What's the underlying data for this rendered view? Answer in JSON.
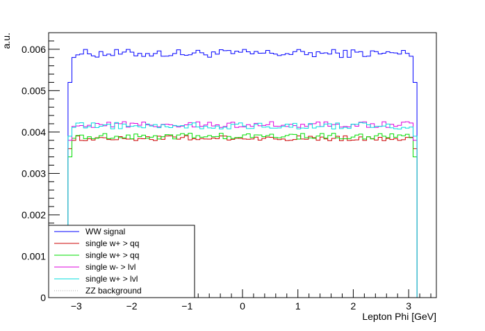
{
  "chart_data": {
    "type": "line",
    "title": "",
    "xlabel": "Lepton Phi [GeV]",
    "ylabel": "a.u.",
    "xlim": [
      -3.5,
      3.5
    ],
    "ylim": [
      0,
      0.0064
    ],
    "x_ticks": [
      -3,
      -2,
      -1,
      0,
      1,
      2,
      3
    ],
    "x_tick_labels": [
      "−3",
      "−2",
      "−1",
      "0",
      "1",
      "2",
      "3"
    ],
    "y_ticks": [
      0,
      0.001,
      0.002,
      0.003,
      0.004,
      0.005,
      0.006
    ],
    "y_tick_labels": [
      "0",
      "0.001",
      "0.002",
      "0.003",
      "0.004",
      "0.005",
      "0.006"
    ],
    "grid": false,
    "legend_position": "bottom-left",
    "histogram": {
      "bins": 100,
      "range": [
        -3.5,
        3.5
      ],
      "populated_range": [
        -3.14,
        3.14
      ]
    },
    "series": [
      {
        "name": "WW signal",
        "color": "#0000ff",
        "edge_level": 0.0052,
        "plateau": 0.0059,
        "amplitude": 0.0001
      },
      {
        "name": "single w+ > qq",
        "color": "#cc0000",
        "edge_level": 0.0036,
        "plateau": 0.00385,
        "amplitude": 6e-05
      },
      {
        "name": "single w+ > qq",
        "color": "#00dd00",
        "edge_level": 0.0034,
        "plateau": 0.0039,
        "amplitude": 7e-05
      },
      {
        "name": "single w- > lvl",
        "color": "#dd00dd",
        "edge_level": 0.0038,
        "plateau": 0.00418,
        "amplitude": 7e-05
      },
      {
        "name": "single w+ > lvl",
        "color": "#00dddd",
        "edge_level": 0.0039,
        "plateau": 0.00415,
        "amplitude": 8e-05
      },
      {
        "name": "ZZ background",
        "color": "#aaaaaa",
        "edge_level": 0,
        "plateau": 0,
        "amplitude": 0,
        "style": "dotted"
      }
    ]
  }
}
